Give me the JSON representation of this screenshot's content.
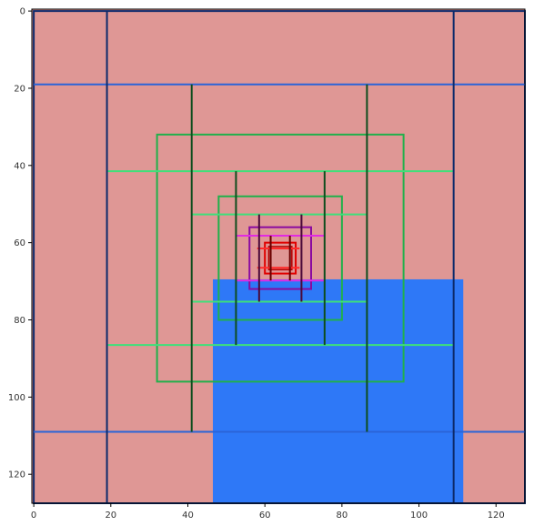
{
  "chart_data": {
    "type": "image",
    "title": "",
    "xlabel": "",
    "ylabel": "",
    "xlim": [
      0,
      128
    ],
    "ylim": [
      128,
      0
    ],
    "y_inverted": true,
    "grid": false,
    "xticks": [
      0,
      20,
      40,
      60,
      80,
      100,
      120
    ],
    "yticks": [
      0,
      20,
      40,
      60,
      80,
      100,
      120
    ],
    "background_color": "#df9795",
    "fills": [
      {
        "name": "blue-block",
        "x0": 46.5,
        "y0": 69.5,
        "x1": 111.5,
        "y1": 127.5,
        "color": "#2e78f7"
      }
    ],
    "rectangles": [
      {
        "name": "outer-dark-blue-frame",
        "x0": 0,
        "y0": 0,
        "x1": 127.5,
        "y1": 127.5,
        "color": "#0d2a6b",
        "width": 2
      },
      {
        "name": "green-rect-1",
        "x0": 32,
        "y0": 32,
        "x1": 96,
        "y1": 96,
        "color": "#21b04b",
        "width": 2
      },
      {
        "name": "green-rect-2",
        "x0": 48,
        "y0": 48,
        "x1": 80,
        "y1": 80,
        "color": "#21b04b",
        "width": 2
      },
      {
        "name": "purple-rect",
        "x0": 56,
        "y0": 56,
        "x1": 72,
        "y1": 72,
        "color": "#8a0aa0",
        "width": 2
      },
      {
        "name": "red-rect-outer",
        "x0": 60,
        "y0": 60,
        "x1": 68,
        "y1": 68,
        "color": "#e00000",
        "width": 2
      },
      {
        "name": "red-rect-inner",
        "x0": 61,
        "y0": 61,
        "x1": 67,
        "y1": 67,
        "color": "#b30000",
        "width": 1.5
      }
    ],
    "hlines": [
      {
        "name": "blue-hline-top",
        "y": 19,
        "x0": 0,
        "x1": 127.5,
        "color": "#2a64d8",
        "width": 2
      },
      {
        "name": "blue-hline-bottom",
        "y": 109,
        "x0": 0,
        "x1": 127.5,
        "color": "#2a64d8",
        "width": 2
      },
      {
        "name": "light-green-hline-1",
        "y": 41.5,
        "x0": 19,
        "x1": 109,
        "color": "#3ee07a",
        "width": 2
      },
      {
        "name": "light-green-hline-2",
        "y": 86.5,
        "x0": 19,
        "x1": 109,
        "color": "#3ee07a",
        "width": 2
      },
      {
        "name": "light-green-hline-3",
        "y": 52.7,
        "x0": 41,
        "x1": 86.5,
        "color": "#3ee07a",
        "width": 2
      },
      {
        "name": "light-green-hline-4",
        "y": 75.3,
        "x0": 41,
        "x1": 86.5,
        "color": "#3ee07a",
        "width": 2
      },
      {
        "name": "magenta-hline-1",
        "y": 58.2,
        "x0": 52.5,
        "x1": 75.5,
        "color": "#e22be2",
        "width": 2
      },
      {
        "name": "magenta-hline-2",
        "y": 69.8,
        "x0": 52.5,
        "x1": 75.5,
        "color": "#e22be2",
        "width": 2
      },
      {
        "name": "red-hline-1",
        "y": 61.5,
        "x0": 58,
        "x1": 69,
        "color": "#ff2a2a",
        "width": 2
      },
      {
        "name": "red-hline-2",
        "y": 66.5,
        "x0": 58,
        "x1": 69,
        "color": "#ff2a2a",
        "width": 2
      }
    ],
    "vlines": [
      {
        "name": "navy-vline-left",
        "x": 19,
        "y0": 0,
        "y1": 127.5,
        "color": "#0d2a6b",
        "width": 2
      },
      {
        "name": "navy-vline-right",
        "x": 109,
        "y0": 0,
        "y1": 127.5,
        "color": "#0d2a6b",
        "width": 2
      },
      {
        "name": "dark-green-vline-1",
        "x": 41,
        "y0": 19,
        "y1": 109,
        "color": "#0e4d1d",
        "width": 2
      },
      {
        "name": "dark-green-vline-2",
        "x": 86.5,
        "y0": 19,
        "y1": 109,
        "color": "#0e4d1d",
        "width": 2
      },
      {
        "name": "dark-green-vline-3",
        "x": 52.5,
        "y0": 41.5,
        "y1": 86.5,
        "color": "#0e4d1d",
        "width": 2
      },
      {
        "name": "dark-green-vline-4",
        "x": 75.5,
        "y0": 41.5,
        "y1": 86.5,
        "color": "#0e4d1d",
        "width": 2
      },
      {
        "name": "dark-purple-vline-1",
        "x": 58.5,
        "y0": 52.7,
        "y1": 75.3,
        "color": "#4a0a3a",
        "width": 2
      },
      {
        "name": "dark-purple-vline-2",
        "x": 69.5,
        "y0": 52.7,
        "y1": 75.3,
        "color": "#4a0a3a",
        "width": 2
      },
      {
        "name": "dark-red-vline-1",
        "x": 61.5,
        "y0": 58.2,
        "y1": 69.8,
        "color": "#6a0000",
        "width": 2
      },
      {
        "name": "dark-red-vline-2",
        "x": 66.5,
        "y0": 58.2,
        "y1": 69.8,
        "color": "#6a0000",
        "width": 2
      }
    ]
  }
}
